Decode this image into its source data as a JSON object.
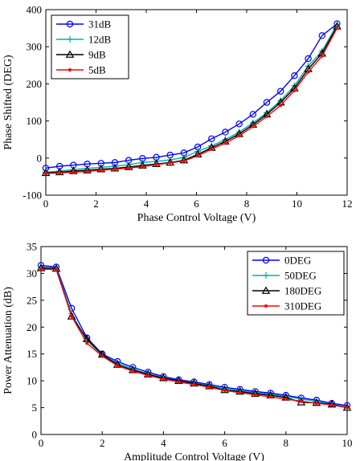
{
  "chart_data": [
    {
      "type": "line",
      "xlabel": "Phase Control Voltage (V)",
      "ylabel": "Phase Shifted (DEG)",
      "xlim": [
        0,
        12
      ],
      "ylim": [
        -100,
        400
      ],
      "xticks": [
        0,
        2,
        4,
        6,
        8,
        10,
        12
      ],
      "yticks": [
        -100,
        0,
        100,
        200,
        300,
        400
      ],
      "grid": false,
      "legend_position": "top-left",
      "series": [
        {
          "name": "31dB",
          "color": "#0000ff",
          "marker": "circle",
          "x": [
            0,
            0.55,
            1.1,
            1.65,
            2.2,
            2.75,
            3.3,
            3.85,
            4.4,
            4.95,
            5.5,
            6.05,
            6.6,
            7.15,
            7.7,
            8.25,
            8.8,
            9.35,
            9.9,
            10.45,
            11.0,
            11.6
          ],
          "y": [
            -27,
            -22,
            -19,
            -16,
            -14,
            -12,
            -6,
            -1,
            2,
            8,
            14,
            30,
            52,
            70,
            92,
            118,
            150,
            180,
            222,
            268,
            330,
            362
          ]
        },
        {
          "name": "12dB",
          "color": "#00b0b0",
          "marker": "plus",
          "x": [
            0,
            0.55,
            1.1,
            1.65,
            2.2,
            2.75,
            3.3,
            3.85,
            4.4,
            4.95,
            5.5,
            6.05,
            6.6,
            7.15,
            7.7,
            8.25,
            8.8,
            9.35,
            9.9,
            10.45,
            11.0,
            11.6
          ],
          "y": [
            -38,
            -35,
            -31,
            -28,
            -25,
            -22,
            -18,
            -12,
            -9,
            -5,
            2,
            18,
            33,
            50,
            70,
            95,
            122,
            155,
            195,
            248,
            288,
            360
          ]
        },
        {
          "name": "9dB",
          "color": "#000000",
          "marker": "triangle",
          "x": [
            0,
            0.55,
            1.1,
            1.65,
            2.2,
            2.75,
            3.3,
            3.85,
            4.4,
            4.95,
            5.5,
            6.05,
            6.6,
            7.15,
            7.7,
            8.25,
            8.8,
            9.35,
            9.9,
            10.45,
            11.0,
            11.6
          ],
          "y": [
            -40,
            -38,
            -35,
            -33,
            -30,
            -28,
            -24,
            -20,
            -16,
            -12,
            -6,
            10,
            28,
            45,
            65,
            90,
            118,
            150,
            188,
            240,
            282,
            355
          ]
        },
        {
          "name": "5dB",
          "color": "#ff0000",
          "marker": "dot",
          "x": [
            0,
            0.55,
            1.1,
            1.65,
            2.2,
            2.75,
            3.3,
            3.85,
            4.4,
            4.95,
            5.5,
            6.05,
            6.6,
            7.15,
            7.7,
            8.25,
            8.8,
            9.35,
            9.9,
            10.45,
            11.0,
            11.6
          ],
          "y": [
            -42,
            -40,
            -38,
            -36,
            -33,
            -30,
            -27,
            -23,
            -18,
            -13,
            -8,
            6,
            24,
            40,
            60,
            85,
            112,
            142,
            182,
            232,
            275,
            350
          ]
        }
      ]
    },
    {
      "type": "line",
      "xlabel": "Amplitude Control Voltage (V)",
      "ylabel": "Power Attenuation (dB)",
      "xlim": [
        0,
        10
      ],
      "ylim": [
        0,
        35
      ],
      "xticks": [
        0,
        2,
        4,
        6,
        8,
        10
      ],
      "yticks": [
        0,
        5,
        10,
        15,
        20,
        25,
        30,
        35
      ],
      "grid": false,
      "legend_position": "top-right",
      "series": [
        {
          "name": "0DEG",
          "color": "#0000ff",
          "marker": "circle",
          "x": [
            0,
            0.5,
            1.0,
            1.5,
            2.0,
            2.5,
            3.0,
            3.5,
            4.0,
            4.5,
            5.0,
            5.5,
            6.0,
            6.5,
            7.0,
            7.5,
            8.0,
            8.5,
            9.0,
            9.5,
            10.0
          ],
          "y": [
            31.5,
            31.2,
            23.5,
            18.0,
            15.0,
            13.6,
            12.5,
            11.6,
            10.8,
            10.2,
            9.8,
            9.3,
            8.8,
            8.4,
            8.0,
            7.7,
            7.3,
            6.8,
            6.4,
            5.8,
            5.4
          ]
        },
        {
          "name": "50DEG",
          "color": "#00b0b0",
          "marker": "plus",
          "x": [
            0,
            0.5,
            1.0,
            1.5,
            2.0,
            2.5,
            3.0,
            3.5,
            4.0,
            4.5,
            5.0,
            5.5,
            6.0,
            6.5,
            7.0,
            7.5,
            8.0,
            8.5,
            9.0,
            9.5,
            10.0
          ],
          "y": [
            31.2,
            31.0,
            22.5,
            17.5,
            14.8,
            13.3,
            12.2,
            11.3,
            10.6,
            10.0,
            9.6,
            9.1,
            8.6,
            8.2,
            7.8,
            7.5,
            7.1,
            6.6,
            6.2,
            5.6,
            5.2
          ]
        },
        {
          "name": "180DEG",
          "color": "#000000",
          "marker": "triangle",
          "x": [
            0,
            0.5,
            1.0,
            1.5,
            2.0,
            2.5,
            3.0,
            3.5,
            4.0,
            4.5,
            5.0,
            5.5,
            6.0,
            6.5,
            7.0,
            7.5,
            8.0,
            8.5,
            9.0,
            9.5,
            10.0
          ],
          "y": [
            31.0,
            30.9,
            22.0,
            17.8,
            14.9,
            13.0,
            12.0,
            11.2,
            10.5,
            10.0,
            9.5,
            9.0,
            8.3,
            8.0,
            7.6,
            7.3,
            6.9,
            6.0,
            5.9,
            5.6,
            5.0
          ]
        },
        {
          "name": "310DEG",
          "color": "#ff0000",
          "marker": "dot",
          "x": [
            0,
            0.5,
            1.0,
            1.5,
            2.0,
            2.5,
            3.0,
            3.5,
            4.0,
            4.5,
            5.0,
            5.5,
            6.0,
            6.5,
            7.0,
            7.5,
            8.0,
            8.5,
            9.0,
            9.5,
            10.0
          ],
          "y": [
            30.8,
            30.7,
            22.0,
            17.0,
            14.6,
            12.8,
            11.8,
            11.0,
            10.3,
            9.8,
            9.3,
            8.8,
            8.2,
            7.8,
            7.4,
            7.0,
            6.6,
            6.2,
            5.8,
            5.5,
            5.0
          ]
        }
      ]
    }
  ]
}
